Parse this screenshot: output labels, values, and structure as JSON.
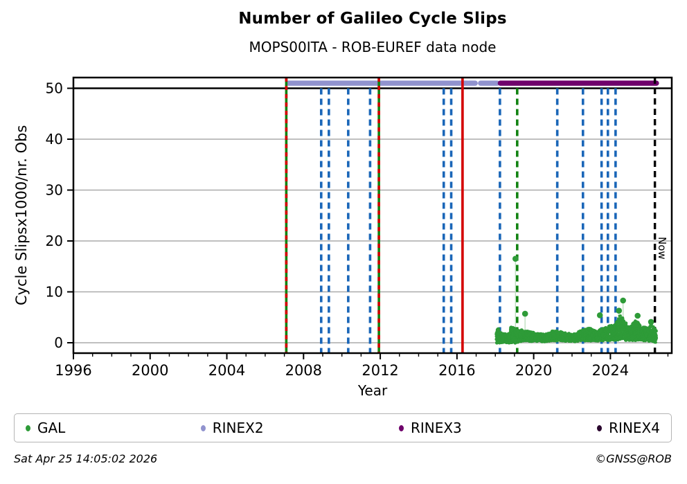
{
  "page": {
    "title": "Number of Galileo Cycle Slips",
    "subtitle": "MOPS00ITA - ROB-EUREF data node"
  },
  "footer": {
    "timestamp": "Sat Apr 25 14:05:02 2026",
    "credit": "©GNSS@ROB"
  },
  "colors": {
    "gal_green": "#2e9b38",
    "line_green": "#128312",
    "rinex2_lavender": "#9193ce",
    "rinex3_purple": "#6f026b",
    "rinex4_dark": "#2a062e",
    "event_blue": "#1a66b8",
    "event_red": "#d40000",
    "grid_gray": "#aaaaaa",
    "axis_black": "#000000"
  },
  "legend": {
    "items": [
      {
        "label": "GAL",
        "color": "#2e9b38"
      },
      {
        "label": "RINEX2",
        "color": "#9193ce"
      },
      {
        "label": "RINEX3",
        "color": "#6f026b"
      },
      {
        "label": "RINEX4",
        "color": "#2a062e"
      }
    ]
  },
  "chart_data": {
    "type": "scatter",
    "title": "Number of Galileo Cycle Slips",
    "subtitle": "MOPS00ITA - ROB-EUREF data node",
    "xlabel": "Year",
    "ylabel": "Cycle Slipsx1000/nr. Obs",
    "xlim": [
      1996,
      2027.2
    ],
    "ylim": [
      -2,
      52.1
    ],
    "x_major_ticks": [
      1996,
      2000,
      2004,
      2008,
      2012,
      2016,
      2020,
      2024
    ],
    "x_minor_tick_step_years": 1,
    "y_ticks": [
      0,
      10,
      20,
      30,
      40,
      50
    ],
    "grid": "horizontal-only",
    "reference_line": {
      "y": 50,
      "color": "#000000"
    },
    "now_marker": {
      "year": 2026.32,
      "label": "Now",
      "style": "dashed",
      "color": "#000000"
    },
    "event_lines": {
      "green_solid_with_red_dash": {
        "years": [
          2007.1,
          2011.93
        ],
        "solid_color": "#128312",
        "dash_color": "#d40000",
        "full_height": true
      },
      "blue_dashed": {
        "years": [
          2008.92,
          2009.32,
          2010.33,
          2011.47,
          2015.31,
          2015.7,
          2018.24,
          2021.23,
          2022.57,
          2023.54,
          2023.87,
          2024.27
        ],
        "color": "#1a66b8"
      },
      "red_solid": {
        "years": [
          2016.29
        ],
        "color": "#d40000",
        "full_height": true
      },
      "green_dashed": {
        "years": [
          2019.14
        ],
        "color": "#128312"
      }
    },
    "series": [
      {
        "name": "GAL",
        "type": "scatter-band",
        "color": "#2e9b38",
        "band_profile": [
          [
            2018.06,
            0.0,
            3.0
          ],
          [
            2018.35,
            0.0,
            2.0
          ],
          [
            2018.65,
            0.0,
            1.5
          ],
          [
            2018.9,
            0.0,
            3.6
          ],
          [
            2019.08,
            0.0,
            2.6
          ],
          [
            2019.35,
            0.3,
            2.5
          ],
          [
            2019.7,
            0.3,
            2.3
          ],
          [
            2020.1,
            0.3,
            1.9
          ],
          [
            2020.6,
            0.2,
            1.7
          ],
          [
            2021.0,
            0.4,
            2.3
          ],
          [
            2021.3,
            0.4,
            2.4
          ],
          [
            2021.7,
            0.3,
            1.9
          ],
          [
            2022.1,
            0.2,
            1.7
          ],
          [
            2022.5,
            0.4,
            2.6
          ],
          [
            2022.9,
            0.4,
            2.9
          ],
          [
            2023.3,
            0.3,
            2.3
          ],
          [
            2023.7,
            0.5,
            3.1
          ],
          [
            2024.0,
            0.5,
            3.3
          ],
          [
            2024.3,
            0.5,
            4.0
          ],
          [
            2024.55,
            0.6,
            6.0
          ],
          [
            2024.7,
            0.5,
            4.5
          ],
          [
            2025.0,
            0.4,
            3.0
          ],
          [
            2025.35,
            0.5,
            4.6
          ],
          [
            2025.6,
            0.4,
            3.2
          ],
          [
            2025.95,
            0.3,
            3.0
          ],
          [
            2026.2,
            0.3,
            3.8
          ],
          [
            2026.4,
            0.0,
            2.2
          ]
        ],
        "outliers": [
          [
            2019.05,
            16.5
          ],
          [
            2019.55,
            5.7
          ],
          [
            2023.45,
            5.4
          ],
          [
            2024.45,
            6.3
          ],
          [
            2024.66,
            8.3
          ],
          [
            2025.42,
            5.3
          ],
          [
            2026.12,
            4.1
          ]
        ]
      },
      {
        "name": "RINEX2",
        "type": "availability",
        "value": 51,
        "color": "#9193ce",
        "segments": [
          [
            2007.22,
            2016.55
          ],
          [
            2016.62,
            2016.95
          ],
          [
            2017.23,
            2018.1
          ]
        ]
      },
      {
        "name": "RINEX3",
        "type": "availability",
        "value": 51,
        "color": "#6f026b",
        "segments": [
          [
            2018.26,
            2026.4
          ]
        ]
      },
      {
        "name": "RINEX4",
        "type": "availability",
        "value": 51,
        "color": "#2a062e",
        "segments": []
      }
    ]
  }
}
